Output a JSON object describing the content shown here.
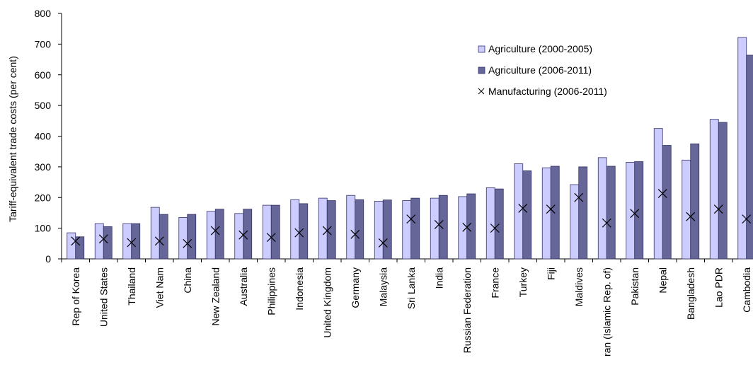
{
  "chart_data": {
    "type": "bar",
    "title": "",
    "xlabel": "",
    "ylabel": "Tariff-equivalent trade costs (per cent)",
    "ylim": [
      0,
      800
    ],
    "yticks": [
      0,
      100,
      200,
      300,
      400,
      500,
      600,
      700,
      800
    ],
    "grid": false,
    "legend_position": "top-right",
    "categories": [
      "Rep of Korea",
      "United States",
      "Thailand",
      "Viet Nam",
      "China",
      "New Zealand",
      "Australia",
      "Philippines",
      "Indonesia",
      "United Kingdom",
      "Germany",
      "Malaysia",
      "Sri Lanka",
      "India",
      "Russian Federation",
      "France",
      "Turkey",
      "Fiji",
      "Maldives",
      "ran (Islamic Rep. of)",
      "Pakistan",
      "Nepal",
      "Bangladesh",
      "Lao PDR",
      "Cambodia"
    ],
    "series": [
      {
        "name": "Agriculture (2000-2005)",
        "kind": "bar",
        "color": "#ccccff",
        "values": [
          85,
          115,
          115,
          168,
          135,
          155,
          148,
          175,
          193,
          198,
          207,
          188,
          190,
          198,
          203,
          232,
          310,
          297,
          242,
          330,
          315,
          425,
          322,
          455,
          722
        ]
      },
      {
        "name": "Agriculture (2006-2011)",
        "kind": "bar",
        "color": "#666699",
        "values": [
          72,
          105,
          115,
          145,
          145,
          162,
          162,
          175,
          180,
          190,
          193,
          192,
          198,
          207,
          212,
          228,
          287,
          302,
          300,
          302,
          317,
          370,
          375,
          445,
          664
        ]
      },
      {
        "name": "Manufacturing (2006-2011)",
        "kind": "marker",
        "marker": "x",
        "values": [
          58,
          65,
          53,
          58,
          50,
          92,
          78,
          70,
          85,
          92,
          80,
          52,
          130,
          112,
          103,
          100,
          165,
          162,
          200,
          117,
          148,
          213,
          138,
          162,
          130
        ]
      }
    ]
  }
}
